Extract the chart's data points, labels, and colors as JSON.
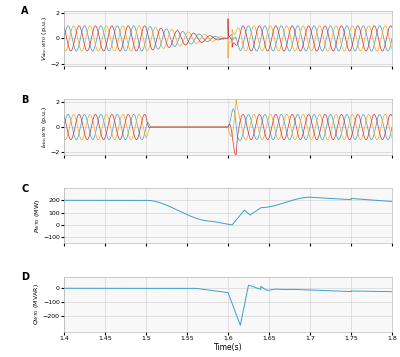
{
  "xlim": [
    1.4,
    1.8
  ],
  "xlabel": "Time(s)",
  "xticks": [
    1.4,
    1.45,
    1.5,
    1.55,
    1.6,
    1.65,
    1.7,
    1.75,
    1.8
  ],
  "xtick_labels": [
    "1.4",
    "1.45",
    "1.5",
    "1.55",
    "1.6",
    "1.65",
    "1.7",
    "1.75",
    "1.8"
  ],
  "subplot_A_label": "A",
  "subplot_A_ylabel": "$V_{abc,WTG}$ (p.u.)",
  "subplot_A_ylim": [
    -2.2,
    2.2
  ],
  "subplot_A_yticks": [
    -2,
    0,
    2
  ],
  "subplot_B_label": "B",
  "subplot_B_ylabel": "$I_{abc,WTG}$ (p.u.)",
  "subplot_B_ylim": [
    -2.2,
    2.2
  ],
  "subplot_B_yticks": [
    -2,
    0,
    2
  ],
  "subplot_C_label": "C",
  "subplot_C_ylabel": "$P_{WTG}$ (MW)",
  "subplot_C_ylim": [
    -150,
    300
  ],
  "subplot_C_yticks": [
    -100,
    0,
    100,
    200
  ],
  "subplot_D_label": "D",
  "subplot_D_ylabel": "$Q_{WTG}$ (MVAR)",
  "subplot_D_ylim": [
    -310,
    80
  ],
  "subplot_D_yticks": [
    -200,
    -100,
    0
  ],
  "color_blue": "#3a9fcd",
  "color_orange": "#f5a623",
  "color_red": "#d0312d",
  "background_color": "#f8f8f8",
  "freq": 50,
  "lw_ac": 0.5,
  "lw_dc": 0.7
}
